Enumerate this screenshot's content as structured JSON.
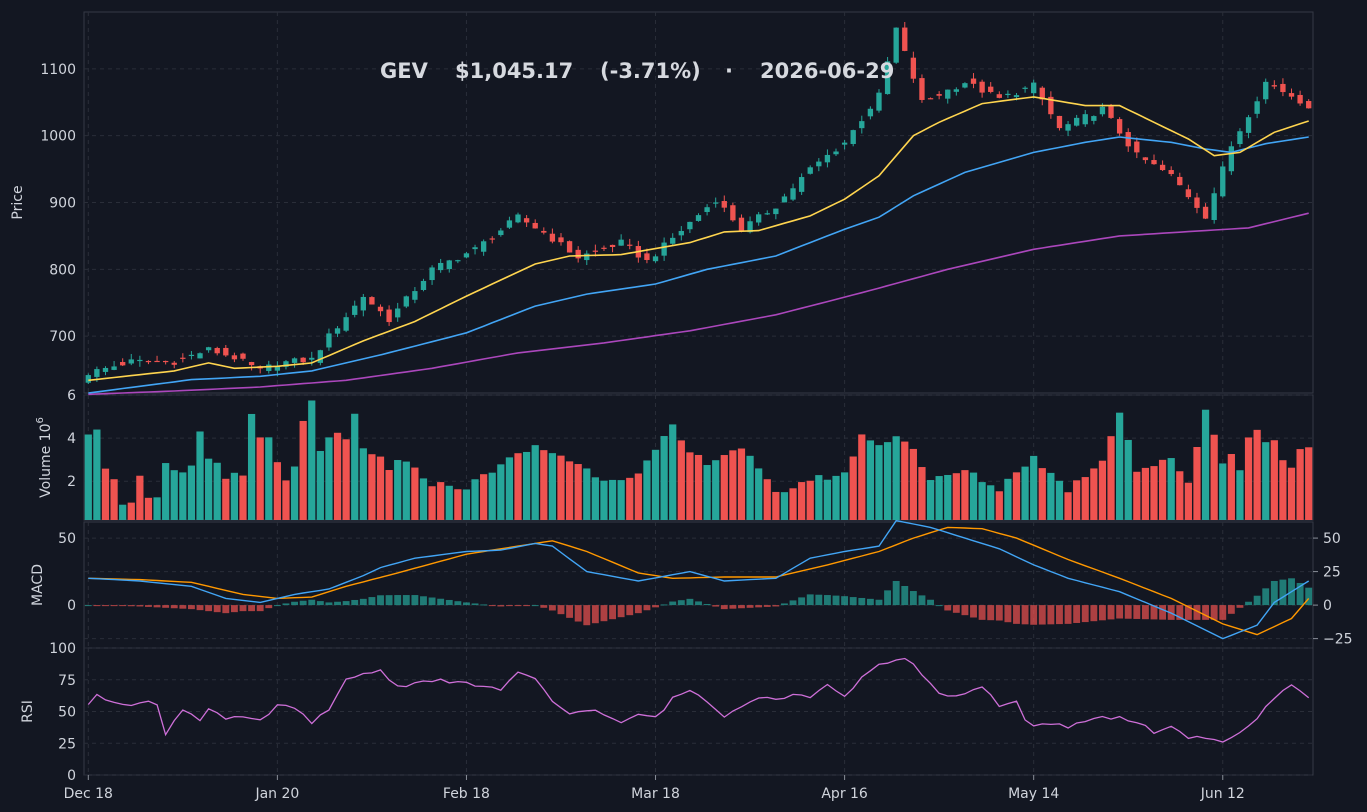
{
  "title": {
    "ticker": "GEV",
    "price": "$1,045.17",
    "change": "(-3.71%)",
    "separator": "·",
    "date": "2026-06-29"
  },
  "colors": {
    "background": "#131722",
    "grid": "#2a2e39",
    "up": "#26a69a",
    "down": "#ef5350",
    "ema_fast": "#ffd54f",
    "ema_mid": "#42a5f5",
    "ema_slow": "#ab47bc",
    "macd": "#42a5f5",
    "signal": "#ff9800",
    "rsi": "#ce6fd8",
    "text": "#d0d4dc"
  },
  "chart_data": {
    "type": "candlestick",
    "x_ticks": [
      "Dec 18",
      "Jan 20",
      "Feb 18",
      "Mar 18",
      "Apr 16",
      "May 14",
      "Jun 12"
    ],
    "x_tick_indices": [
      0,
      22,
      44,
      66,
      88,
      110,
      132
    ],
    "n_bars": 143,
    "price": {
      "ylabel": "Price",
      "ylim": [
        615,
        1185
      ],
      "yticks": [
        700,
        800,
        900,
        1000,
        1100
      ],
      "close_anchors": [
        [
          0,
          645
        ],
        [
          5,
          662
        ],
        [
          10,
          662
        ],
        [
          14,
          680
        ],
        [
          17,
          668
        ],
        [
          20,
          648
        ],
        [
          22,
          660
        ],
        [
          26,
          665
        ],
        [
          28,
          700
        ],
        [
          32,
          760
        ],
        [
          35,
          725
        ],
        [
          40,
          800
        ],
        [
          45,
          830
        ],
        [
          50,
          878
        ],
        [
          53,
          855
        ],
        [
          57,
          818
        ],
        [
          62,
          840
        ],
        [
          65,
          812
        ],
        [
          70,
          870
        ],
        [
          73,
          905
        ],
        [
          76,
          860
        ],
        [
          80,
          895
        ],
        [
          84,
          950
        ],
        [
          88,
          990
        ],
        [
          92,
          1060
        ],
        [
          94,
          1160
        ],
        [
          97,
          1050
        ],
        [
          102,
          1080
        ],
        [
          106,
          1055
        ],
        [
          110,
          1075
        ],
        [
          113,
          1010
        ],
        [
          118,
          1040
        ],
        [
          122,
          970
        ],
        [
          126,
          940
        ],
        [
          130,
          880
        ],
        [
          133,
          985
        ],
        [
          137,
          1080
        ],
        [
          140,
          1060
        ],
        [
          142,
          1045
        ]
      ],
      "ema_fast_anchors": [
        [
          0,
          634
        ],
        [
          10,
          648
        ],
        [
          14,
          660
        ],
        [
          17,
          652
        ],
        [
          22,
          655
        ],
        [
          26,
          660
        ],
        [
          32,
          693
        ],
        [
          38,
          722
        ],
        [
          44,
          760
        ],
        [
          52,
          808
        ],
        [
          56,
          820
        ],
        [
          62,
          822
        ],
        [
          70,
          840
        ],
        [
          74,
          856
        ],
        [
          78,
          858
        ],
        [
          84,
          880
        ],
        [
          88,
          905
        ],
        [
          92,
          940
        ],
        [
          96,
          1000
        ],
        [
          99,
          1020
        ],
        [
          104,
          1048
        ],
        [
          110,
          1058
        ],
        [
          116,
          1045
        ],
        [
          120,
          1045
        ],
        [
          124,
          1020
        ],
        [
          128,
          995
        ],
        [
          131,
          970
        ],
        [
          134,
          975
        ],
        [
          138,
          1005
        ],
        [
          142,
          1022
        ]
      ],
      "ema_mid_anchors": [
        [
          0,
          615
        ],
        [
          6,
          625
        ],
        [
          12,
          635
        ],
        [
          20,
          640
        ],
        [
          26,
          648
        ],
        [
          34,
          672
        ],
        [
          44,
          705
        ],
        [
          52,
          745
        ],
        [
          58,
          763
        ],
        [
          66,
          778
        ],
        [
          72,
          800
        ],
        [
          80,
          820
        ],
        [
          88,
          860
        ],
        [
          92,
          878
        ],
        [
          96,
          910
        ],
        [
          102,
          945
        ],
        [
          110,
          975
        ],
        [
          116,
          990
        ],
        [
          120,
          998
        ],
        [
          126,
          990
        ],
        [
          130,
          980
        ],
        [
          133,
          975
        ],
        [
          137,
          988
        ],
        [
          142,
          998
        ]
      ],
      "ema_slow_anchors": [
        [
          0,
          613
        ],
        [
          10,
          618
        ],
        [
          20,
          624
        ],
        [
          30,
          634
        ],
        [
          40,
          652
        ],
        [
          50,
          675
        ],
        [
          60,
          690
        ],
        [
          70,
          708
        ],
        [
          80,
          732
        ],
        [
          90,
          765
        ],
        [
          100,
          800
        ],
        [
          110,
          830
        ],
        [
          120,
          850
        ],
        [
          130,
          858
        ],
        [
          135,
          862
        ],
        [
          142,
          884
        ]
      ],
      "ema_sticky_wicks": true
    },
    "volume": {
      "ylabel": "Volume",
      "unit_exponent": "6",
      "ylim": [
        0.2,
        6.0
      ],
      "yticks": [
        2,
        4,
        6
      ],
      "anchors": [
        [
          0,
          4.3
        ],
        [
          1,
          4.5
        ],
        [
          2,
          2.7
        ],
        [
          3,
          2.0
        ],
        [
          4,
          1.0
        ],
        [
          5,
          1.1
        ],
        [
          6,
          2.2
        ],
        [
          7,
          1.1
        ],
        [
          8,
          1.2
        ],
        [
          9,
          2.7
        ],
        [
          10,
          2.4
        ],
        [
          11,
          2.4
        ],
        [
          12,
          2.6
        ],
        [
          13,
          4.3
        ],
        [
          14,
          3.1
        ],
        [
          15,
          2.8
        ],
        [
          16,
          2.1
        ],
        [
          17,
          2.4
        ],
        [
          18,
          2.4
        ],
        [
          19,
          5.0
        ],
        [
          20,
          3.9
        ],
        [
          21,
          4.0
        ],
        [
          22,
          2.8
        ],
        [
          23,
          2.0
        ],
        [
          24,
          2.6
        ],
        [
          25,
          4.7
        ],
        [
          26,
          5.8
        ],
        [
          27,
          3.5
        ],
        [
          28,
          3.9
        ],
        [
          29,
          4.1
        ],
        [
          30,
          3.9
        ],
        [
          31,
          5.0
        ],
        [
          32,
          3.5
        ],
        [
          33,
          3.2
        ],
        [
          34,
          3.1
        ],
        [
          35,
          2.6
        ],
        [
          36,
          2.9
        ],
        [
          37,
          2.8
        ],
        [
          40,
          1.9
        ],
        [
          44,
          1.7
        ],
        [
          48,
          2.8
        ],
        [
          52,
          3.6
        ],
        [
          55,
          3.2
        ],
        [
          60,
          2.1
        ],
        [
          64,
          2.3
        ],
        [
          68,
          4.5
        ],
        [
          70,
          3.3
        ],
        [
          72,
          2.9
        ],
        [
          76,
          3.6
        ],
        [
          78,
          2.5
        ],
        [
          80,
          1.4
        ],
        [
          84,
          2.1
        ],
        [
          88,
          2.3
        ],
        [
          90,
          4.2
        ],
        [
          92,
          3.6
        ],
        [
          94,
          4.2
        ],
        [
          96,
          3.5
        ],
        [
          98,
          2.0
        ],
        [
          102,
          2.5
        ],
        [
          106,
          1.6
        ],
        [
          108,
          2.5
        ],
        [
          110,
          3.1
        ],
        [
          114,
          1.6
        ],
        [
          118,
          3.0
        ],
        [
          120,
          5.3
        ],
        [
          122,
          2.5
        ],
        [
          126,
          3.0
        ],
        [
          128,
          2.0
        ],
        [
          130,
          5.3
        ],
        [
          131,
          4.2
        ],
        [
          132,
          2.8
        ],
        [
          133,
          3.4
        ],
        [
          134,
          2.6
        ],
        [
          135,
          4.0
        ],
        [
          136,
          4.3
        ],
        [
          137,
          3.9
        ],
        [
          138,
          3.9
        ],
        [
          139,
          2.9
        ],
        [
          140,
          2.7
        ],
        [
          141,
          3.6
        ],
        [
          142,
          3.6
        ]
      ]
    },
    "macd": {
      "ylabel": "MACD",
      "ylim": [
        -32,
        62
      ],
      "yticks_left": [
        0,
        50
      ],
      "yticks_right": [
        -25,
        0,
        25,
        50
      ],
      "macd_anchors": [
        [
          0,
          20
        ],
        [
          6,
          18
        ],
        [
          12,
          14
        ],
        [
          16,
          5
        ],
        [
          20,
          2
        ],
        [
          24,
          8
        ],
        [
          28,
          12
        ],
        [
          32,
          22
        ],
        [
          34,
          28
        ],
        [
          38,
          35
        ],
        [
          44,
          40
        ],
        [
          48,
          41
        ],
        [
          52,
          46
        ],
        [
          54,
          44
        ],
        [
          58,
          25
        ],
        [
          64,
          18
        ],
        [
          70,
          25
        ],
        [
          74,
          18
        ],
        [
          80,
          20
        ],
        [
          84,
          35
        ],
        [
          88,
          40
        ],
        [
          92,
          44
        ],
        [
          94,
          63
        ],
        [
          98,
          58
        ],
        [
          102,
          50
        ],
        [
          106,
          42
        ],
        [
          110,
          30
        ],
        [
          114,
          20
        ],
        [
          120,
          10
        ],
        [
          126,
          -6
        ],
        [
          132,
          -25
        ],
        [
          136,
          -15
        ],
        [
          138,
          2
        ],
        [
          142,
          18
        ]
      ],
      "signal_anchors": [
        [
          0,
          20
        ],
        [
          6,
          19
        ],
        [
          12,
          17
        ],
        [
          18,
          8
        ],
        [
          22,
          5
        ],
        [
          26,
          6
        ],
        [
          30,
          14
        ],
        [
          36,
          24
        ],
        [
          44,
          38
        ],
        [
          50,
          44
        ],
        [
          54,
          48
        ],
        [
          58,
          40
        ],
        [
          64,
          24
        ],
        [
          68,
          20
        ],
        [
          74,
          21
        ],
        [
          80,
          21
        ],
        [
          86,
          30
        ],
        [
          92,
          40
        ],
        [
          96,
          50
        ],
        [
          100,
          58
        ],
        [
          104,
          57
        ],
        [
          108,
          50
        ],
        [
          114,
          34
        ],
        [
          120,
          20
        ],
        [
          126,
          5
        ],
        [
          132,
          -14
        ],
        [
          136,
          -22
        ],
        [
          140,
          -10
        ],
        [
          142,
          5
        ]
      ]
    },
    "rsi": {
      "ylabel": "RSI",
      "ylim": [
        0,
        100
      ],
      "yticks": [
        0,
        25,
        50,
        75,
        100
      ],
      "anchors": [
        [
          0,
          56
        ],
        [
          1,
          62
        ],
        [
          3,
          58
        ],
        [
          5,
          56
        ],
        [
          7,
          57
        ],
        [
          8,
          55
        ],
        [
          9,
          33
        ],
        [
          11,
          52
        ],
        [
          13,
          44
        ],
        [
          14,
          53
        ],
        [
          16,
          44
        ],
        [
          18,
          45
        ],
        [
          20,
          42
        ],
        [
          22,
          55
        ],
        [
          24,
          52
        ],
        [
          26,
          42
        ],
        [
          28,
          50
        ],
        [
          30,
          75
        ],
        [
          32,
          80
        ],
        [
          34,
          82
        ],
        [
          36,
          70
        ],
        [
          38,
          72
        ],
        [
          40,
          75
        ],
        [
          42,
          73
        ],
        [
          44,
          72
        ],
        [
          46,
          70
        ],
        [
          48,
          67
        ],
        [
          50,
          80
        ],
        [
          52,
          75
        ],
        [
          54,
          58
        ],
        [
          56,
          48
        ],
        [
          58,
          52
        ],
        [
          60,
          48
        ],
        [
          62,
          40
        ],
        [
          64,
          48
        ],
        [
          66,
          45
        ],
        [
          68,
          60
        ],
        [
          70,
          67
        ],
        [
          72,
          58
        ],
        [
          74,
          47
        ],
        [
          76,
          55
        ],
        [
          78,
          62
        ],
        [
          80,
          60
        ],
        [
          82,
          63
        ],
        [
          84,
          62
        ],
        [
          86,
          70
        ],
        [
          88,
          63
        ],
        [
          90,
          76
        ],
        [
          92,
          86
        ],
        [
          94,
          90
        ],
        [
          95,
          92
        ],
        [
          97,
          80
        ],
        [
          99,
          64
        ],
        [
          101,
          62
        ],
        [
          104,
          70
        ],
        [
          106,
          55
        ],
        [
          108,
          58
        ],
        [
          109,
          42
        ],
        [
          110,
          38
        ],
        [
          112,
          40
        ],
        [
          114,
          38
        ],
        [
          116,
          42
        ],
        [
          118,
          46
        ],
        [
          120,
          45
        ],
        [
          122,
          42
        ],
        [
          124,
          34
        ],
        [
          126,
          37
        ],
        [
          128,
          30
        ],
        [
          130,
          28
        ],
        [
          132,
          26
        ],
        [
          134,
          34
        ],
        [
          136,
          45
        ],
        [
          138,
          60
        ],
        [
          140,
          72
        ],
        [
          141,
          66
        ],
        [
          142,
          60
        ]
      ]
    }
  }
}
